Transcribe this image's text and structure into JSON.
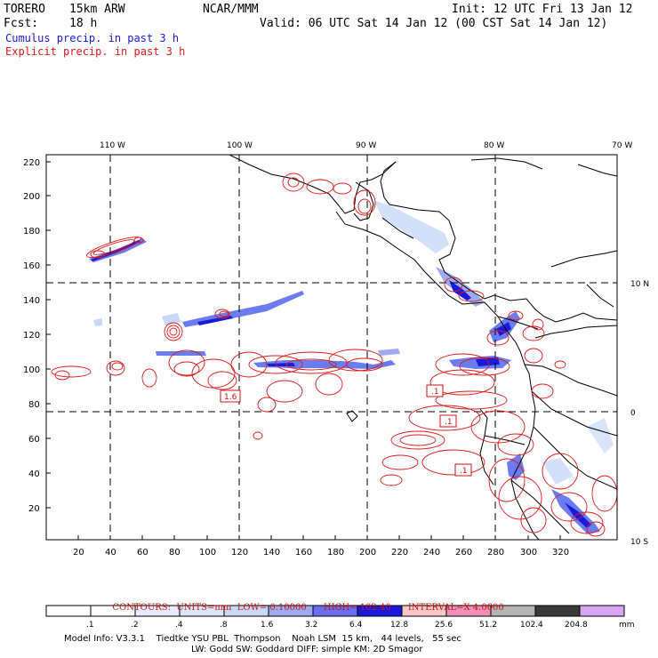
{
  "header": {
    "model_name": "TORERO",
    "resolution": "15km ARW",
    "org": "NCAR/MMM",
    "init": "Init: 12 UTC Fri 13 Jan 12",
    "fcst_label": "Fcst:",
    "fcst_value": "18 h",
    "valid": "Valid: 06 UTC Sat 14 Jan 12 (00 CST Sat 14 Jan 12)",
    "cumulus_label": "Cumulus precip. in past 3 h",
    "explicit_label": "Explicit precip. in past 3 h"
  },
  "map": {
    "top_lon_labels": [
      "110 W",
      "100 W",
      "90 W",
      "80 W",
      "70 W"
    ],
    "right_lat_labels": [
      "10 N",
      "0",
      "10 S"
    ],
    "y_ticks": [
      "220",
      "200",
      "180",
      "160",
      "140",
      "120",
      "100",
      "80",
      "60",
      "40",
      "20"
    ],
    "x_ticks": [
      "20",
      "40",
      "60",
      "80",
      "100",
      "120",
      "140",
      "160",
      "180",
      "200",
      "220",
      "240",
      "260",
      "280",
      "300",
      "320"
    ],
    "contour_labels": [
      "1.6",
      ".1",
      ".1",
      ".1"
    ],
    "colors": {
      "contour": "#e01818",
      "cumulus_light": "#c8d8f8",
      "cumulus_mid": "#6a7cf0",
      "cumulus_dark": "#1a1adc",
      "coast": "#000000"
    }
  },
  "contours_caption": {
    "contours": "CONTOURS:",
    "units": "UNITS=mm",
    "low": "LOW= 0.10000",
    "high": "HIGH= 102.40",
    "interval": "INTERVAL=X 4.0000"
  },
  "colorbar": {
    "labels": [
      ".1",
      ".2",
      ".4",
      ".8",
      "1.6",
      "3.2",
      "6.4",
      "12.8",
      "25.6",
      "51.2",
      "102.4",
      "204.8",
      "mm"
    ],
    "colors": [
      "#ffffff",
      "#ffffff",
      "#e6ecfb",
      "#dce6fa",
      "#c8d8f8",
      "#9eaaf2",
      "#6a6ef0",
      "#1a1adc",
      "#f7c8c8",
      "#f090b8",
      "#b4b4b4",
      "#3a3a3a",
      "#d8a6f0"
    ]
  },
  "footer": {
    "line1": "Model Info: V3.3.1    Tiedtke YSU PBL  Thompson    Noah LSM  15 km,   44 levels,   55 sec",
    "line2": "LW: Godd SW: Goddard DIFF: simple KM: 2D Smagor"
  }
}
